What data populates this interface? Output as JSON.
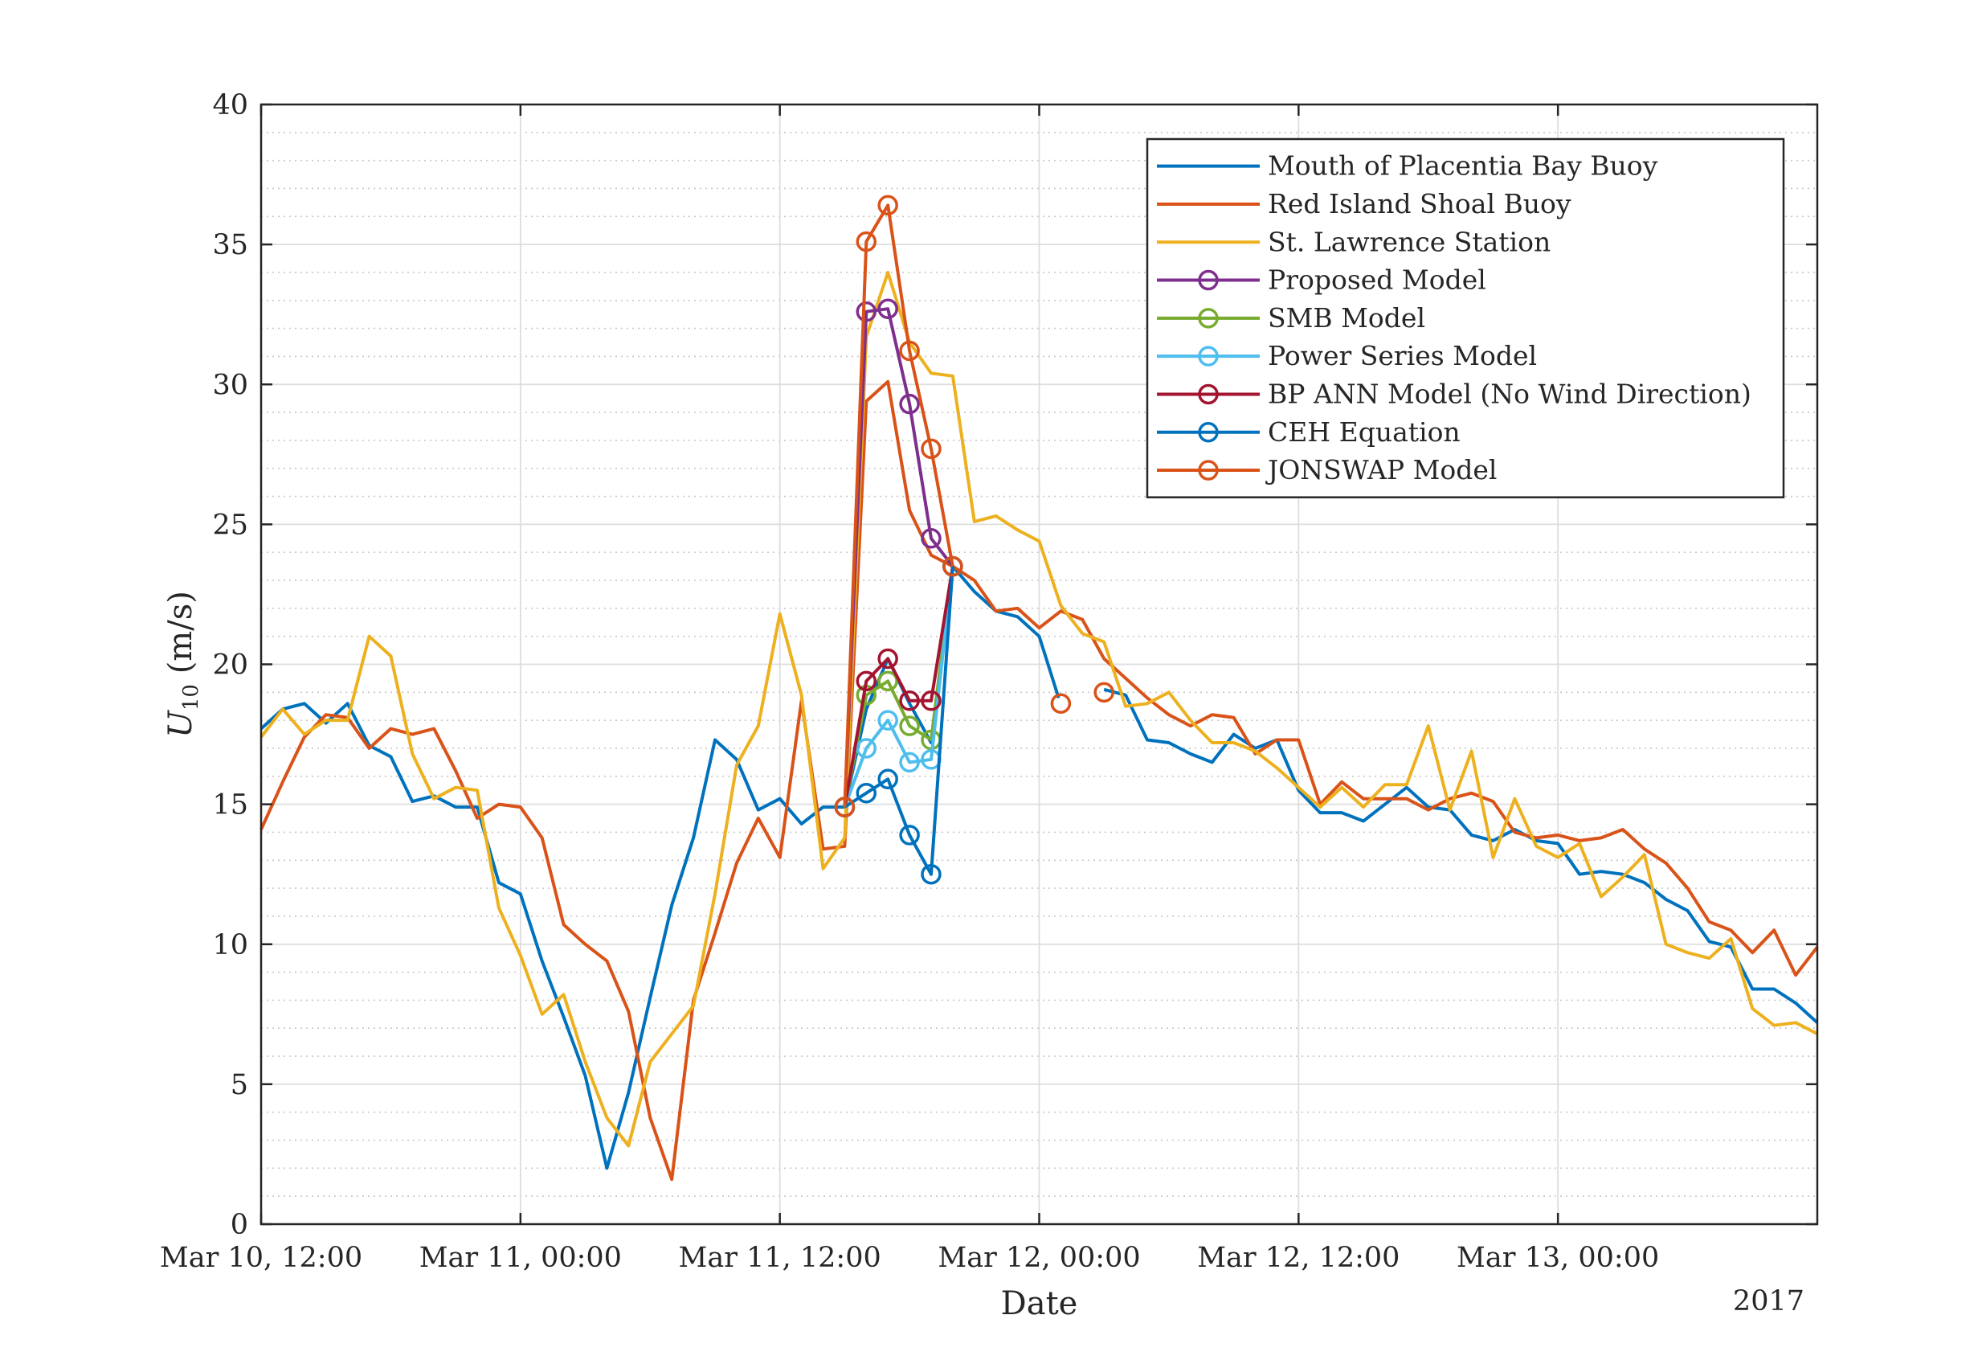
{
  "chart_data": {
    "type": "line",
    "title": "",
    "xlabel": "Date",
    "ylabel": "U10 (m/s)",
    "ylabel_main": "U",
    "ylabel_sub": "10",
    "ylabel_rest": " (m/s)",
    "x_secondary_label": "2017",
    "xlim_hours": [
      0,
      72
    ],
    "ylim": [
      0,
      40
    ],
    "grid": true,
    "minor_grid_y": true,
    "legend_position": "top-right",
    "x_ticks": [
      {
        "h": 0,
        "label": "Mar 10, 12:00"
      },
      {
        "h": 12,
        "label": "Mar 11, 00:00"
      },
      {
        "h": 24,
        "label": "Mar 11, 12:00"
      },
      {
        "h": 36,
        "label": "Mar 12, 00:00"
      },
      {
        "h": 48,
        "label": "Mar 12, 12:00"
      },
      {
        "h": 60,
        "label": "Mar 13, 00:00"
      }
    ],
    "y_ticks": [
      0,
      5,
      10,
      15,
      20,
      25,
      30,
      35,
      40
    ],
    "series": [
      {
        "name": "Mouth of Placentia Bay Buoy",
        "color": "#0072BD",
        "marker": "none",
        "x": [
          0,
          1,
          2,
          3,
          4,
          5,
          6,
          7,
          8,
          9,
          10,
          11,
          12,
          13,
          14,
          15,
          16,
          17,
          18,
          19,
          20,
          21,
          22,
          23,
          24,
          25,
          26,
          27,
          28,
          29,
          30,
          31,
          32,
          33,
          34,
          35,
          36,
          36.9,
          null,
          39,
          40,
          41,
          42,
          43,
          44,
          45,
          46,
          47,
          48,
          49,
          50,
          51,
          52,
          53,
          54,
          55,
          56,
          57,
          58,
          59,
          60,
          61,
          62,
          63,
          64,
          65,
          66,
          67,
          68,
          69,
          70,
          71,
          72
        ],
        "y": [
          17.7,
          18.4,
          18.6,
          17.9,
          18.6,
          17.1,
          16.7,
          15.1,
          15.3,
          14.9,
          14.9,
          12.2,
          11.8,
          9.4,
          7.4,
          5.3,
          2.0,
          4.7,
          8.1,
          11.4,
          13.8,
          17.3,
          16.6,
          14.8,
          15.2,
          14.3,
          14.9,
          14.9,
          18.4,
          20.2,
          18.6,
          17.2,
          23.5,
          22.6,
          21.9,
          21.7,
          21.0,
          18.8,
          null,
          19.1,
          18.9,
          17.3,
          17.2,
          16.8,
          16.5,
          17.5,
          17.0,
          17.3,
          15.5,
          14.7,
          14.7,
          14.4,
          15.0,
          15.6,
          14.9,
          14.8,
          13.9,
          13.7,
          14.1,
          13.7,
          13.6,
          12.5,
          12.6,
          12.5,
          12.2,
          11.6,
          11.2,
          10.1,
          9.9,
          8.4,
          8.4,
          7.9,
          7.2
        ]
      },
      {
        "name": "Red Island Shoal Buoy",
        "color": "#D95319",
        "marker": "none",
        "x": [
          0,
          1,
          2,
          3,
          4,
          5,
          6,
          7,
          8,
          9,
          10,
          11,
          12,
          13,
          14,
          15,
          16,
          17,
          18,
          19,
          20,
          21,
          22,
          23,
          24,
          25,
          26,
          27,
          28,
          29,
          30,
          31,
          32,
          33,
          34,
          35,
          36,
          37,
          38,
          39,
          40,
          41,
          42,
          43,
          44,
          45,
          46,
          47,
          48,
          49,
          50,
          51,
          52,
          53,
          54,
          55,
          56,
          57,
          58,
          59,
          60,
          61,
          62,
          63,
          64,
          65,
          66,
          67,
          68,
          69,
          70,
          71,
          72
        ],
        "y": [
          14.1,
          15.8,
          17.4,
          18.2,
          18.1,
          17.0,
          17.7,
          17.5,
          17.7,
          16.2,
          14.5,
          15.0,
          14.9,
          13.8,
          10.7,
          10.0,
          9.4,
          7.6,
          3.8,
          1.6,
          8.0,
          10.4,
          12.9,
          14.5,
          13.1,
          18.7,
          13.4,
          13.5,
          29.4,
          30.1,
          25.5,
          23.9,
          23.5,
          23.0,
          21.9,
          22.0,
          21.3,
          21.9,
          21.6,
          20.2,
          19.5,
          18.8,
          18.2,
          17.8,
          18.2,
          18.1,
          16.8,
          17.3,
          17.3,
          15.0,
          15.8,
          15.2,
          15.2,
          15.2,
          14.8,
          15.2,
          15.4,
          15.1,
          14.0,
          13.8,
          13.9,
          13.7,
          13.8,
          14.1,
          13.4,
          12.9,
          12.0,
          10.8,
          10.5,
          9.7,
          10.5,
          8.9,
          9.9
        ]
      },
      {
        "name": "St. Lawrence Station",
        "color": "#EDB120",
        "marker": "none",
        "x": [
          0,
          1,
          2,
          3,
          4,
          5,
          6,
          7,
          8,
          9,
          10,
          11,
          12,
          13,
          14,
          15,
          16,
          17,
          18,
          19,
          20,
          21,
          22,
          23,
          24,
          25,
          26,
          27,
          28,
          29,
          30,
          31,
          32,
          33,
          34,
          35,
          36,
          37,
          38,
          39,
          40,
          41,
          42,
          43,
          44,
          45,
          46,
          47,
          48,
          49,
          50,
          51,
          52,
          53,
          54,
          55,
          56,
          57,
          58,
          59,
          60,
          61,
          62,
          63,
          64,
          65,
          66,
          67,
          68,
          69,
          70,
          71,
          72
        ],
        "y": [
          17.4,
          18.4,
          17.5,
          18.0,
          18.0,
          21.0,
          20.3,
          16.8,
          15.2,
          15.6,
          15.5,
          11.3,
          9.6,
          7.5,
          8.2,
          5.8,
          3.8,
          2.8,
          5.8,
          6.8,
          7.8,
          11.8,
          16.4,
          17.8,
          21.8,
          18.9,
          12.7,
          13.8,
          31.7,
          34.0,
          31.5,
          30.4,
          30.3,
          25.1,
          25.3,
          24.8,
          24.4,
          22.1,
          21.1,
          20.8,
          18.5,
          18.6,
          19.0,
          18.0,
          17.2,
          17.2,
          16.9,
          16.3,
          15.6,
          14.9,
          15.6,
          14.9,
          15.7,
          15.7,
          17.8,
          14.8,
          16.9,
          13.1,
          15.2,
          13.5,
          13.1,
          13.6,
          11.7,
          12.4,
          13.2,
          10.0,
          9.7,
          9.5,
          10.2,
          7.7,
          7.1,
          7.2,
          6.8
        ]
      },
      {
        "name": "Proposed Model",
        "color": "#7E2F8E",
        "marker": "circle",
        "x": [
          27,
          28,
          29,
          30,
          31,
          32
        ],
        "y": [
          14.9,
          32.6,
          32.7,
          29.3,
          24.5,
          23.5
        ]
      },
      {
        "name": "SMB Model",
        "color": "#77AC30",
        "marker": "circle",
        "x": [
          27,
          28,
          29,
          30,
          31,
          32
        ],
        "y": [
          14.9,
          18.9,
          19.4,
          17.8,
          17.3,
          23.5
        ]
      },
      {
        "name": "Power Series Model",
        "color": "#4DBEEE",
        "marker": "circle",
        "x": [
          27,
          28,
          29,
          30,
          31,
          32
        ],
        "y": [
          14.9,
          17.0,
          18.0,
          16.5,
          16.6,
          23.5
        ]
      },
      {
        "name": "BP ANN Model (No Wind Direction)",
        "color": "#A2142F",
        "marker": "circle",
        "x": [
          27,
          28,
          29,
          30,
          31,
          32
        ],
        "y": [
          14.9,
          19.4,
          20.2,
          18.7,
          18.7,
          23.5
        ]
      },
      {
        "name": "CEH Equation",
        "color": "#0072BD",
        "marker": "circle",
        "x": [
          27,
          28,
          29,
          30,
          31,
          32
        ],
        "y": [
          14.9,
          15.4,
          15.9,
          13.9,
          12.5,
          23.5
        ]
      },
      {
        "name": "JONSWAP Model",
        "color": "#D95319",
        "marker": "circle",
        "x": [
          27,
          28,
          29,
          30,
          31,
          32,
          null,
          37,
          null,
          39
        ],
        "y": [
          14.9,
          35.1,
          36.4,
          31.2,
          27.7,
          23.5,
          null,
          18.6,
          null,
          19.0
        ]
      }
    ]
  }
}
